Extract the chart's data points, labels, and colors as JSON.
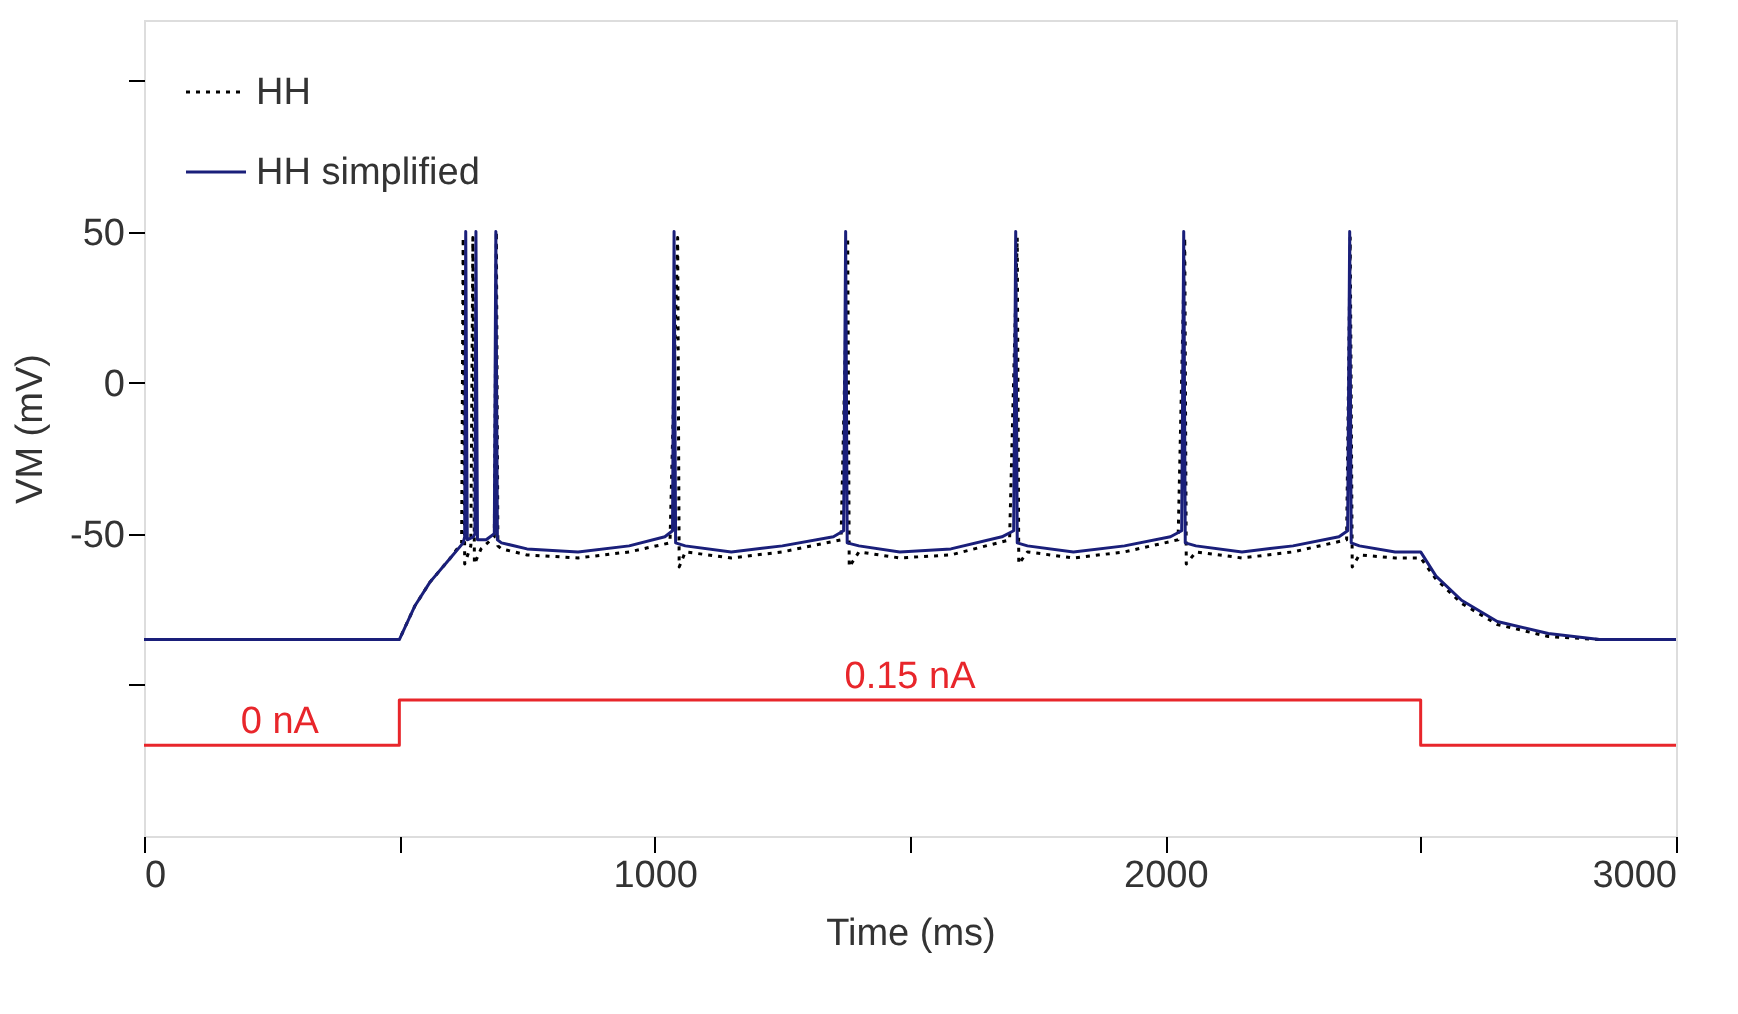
{
  "chart_data": {
    "type": "line",
    "xlabel": "Time (ms)",
    "ylabel": "VM (mV)",
    "xlim": [
      0,
      3000
    ],
    "ylim": [
      -150,
      120
    ],
    "xticks": [
      0,
      {
        "value": 500,
        "label": null
      },
      1000,
      {
        "value": 1500,
        "label": null
      },
      2000,
      {
        "value": 2500,
        "label": null
      },
      3000
    ],
    "yticks": [
      {
        "value": -100,
        "label": null
      },
      -50,
      0,
      50,
      {
        "value": 100,
        "label": null
      }
    ],
    "legend": "top left",
    "grid": false,
    "annotations": [
      {
        "text": "0 nA",
        "x": 266,
        "y": -120
      },
      {
        "text": "0.15 nA",
        "x": 1500,
        "y": -105
      }
    ],
    "series": [
      {
        "name": "HH",
        "color": "#000000",
        "line_style": "dotted",
        "x": [
          0,
          500,
          530,
          560,
          600,
          622,
          625,
          628,
          640,
          644,
          647,
          660,
          686,
          690,
          693,
          700,
          750,
          850,
          950,
          1030,
          1045,
          1048,
          1060,
          1150,
          1250,
          1365,
          1378,
          1381,
          1400,
          1480,
          1580,
          1695,
          1710,
          1713,
          1730,
          1820,
          1920,
          2025,
          2038,
          2041,
          2060,
          2150,
          2250,
          2355,
          2362,
          2366,
          2380,
          2450,
          2500,
          2530,
          2580,
          2650,
          2750,
          2850,
          3000
        ],
        "values": [
          -85,
          -85,
          -74,
          -66,
          -58,
          -53,
          48,
          -60,
          -54,
          48,
          -60,
          -55,
          -51,
          50,
          -54,
          -55,
          -57,
          -58,
          -56,
          -53,
          48,
          -61,
          -56,
          -58,
          -56,
          -52,
          48,
          -61,
          -56,
          -58,
          -57,
          -52,
          48,
          -60,
          -56,
          -58,
          -56,
          -52,
          48,
          -60,
          -56,
          -58,
          -56,
          -52,
          48,
          -61,
          -57,
          -58,
          -58,
          -65,
          -73,
          -80,
          -84,
          -85,
          -85
        ]
      },
      {
        "name": "HH simplified",
        "color": "#1a1f7a",
        "line_style": "solid",
        "x": [
          0,
          500,
          530,
          560,
          600,
          625,
          628,
          630,
          633,
          645,
          648,
          650,
          653,
          670,
          686,
          689,
          692,
          700,
          750,
          850,
          950,
          1020,
          1035,
          1038,
          1041,
          1060,
          1150,
          1250,
          1350,
          1370,
          1374,
          1377,
          1400,
          1480,
          1580,
          1680,
          1703,
          1707,
          1710,
          1730,
          1820,
          1920,
          2010,
          2032,
          2036,
          2039,
          2060,
          2150,
          2250,
          2340,
          2357,
          2361,
          2364,
          2380,
          2450,
          2500,
          2530,
          2580,
          2650,
          2750,
          2850,
          3000
        ],
        "values": [
          -85,
          -85,
          -74,
          -66,
          -58,
          -53,
          -51,
          50,
          -52,
          -51,
          -50,
          50,
          -52,
          -52,
          -50,
          50,
          -52,
          -53,
          -55,
          -56,
          -54,
          -51,
          -49,
          50,
          -53,
          -54,
          -56,
          -54,
          -51,
          -49,
          50,
          -53,
          -54,
          -56,
          -55,
          -51,
          -49,
          50,
          -53,
          -54,
          -56,
          -54,
          -51,
          -49,
          50,
          -53,
          -54,
          -56,
          -54,
          -51,
          -49,
          50,
          -53,
          -54,
          -56,
          -56,
          -64,
          -72,
          -79,
          -83,
          -85,
          -85
        ]
      },
      {
        "type": "step",
        "color": "#e8262b",
        "line_style": "solid",
        "x": [
          0,
          500,
          2500,
          3000
        ],
        "values": [
          -120,
          -105,
          -120,
          -120
        ]
      }
    ]
  }
}
